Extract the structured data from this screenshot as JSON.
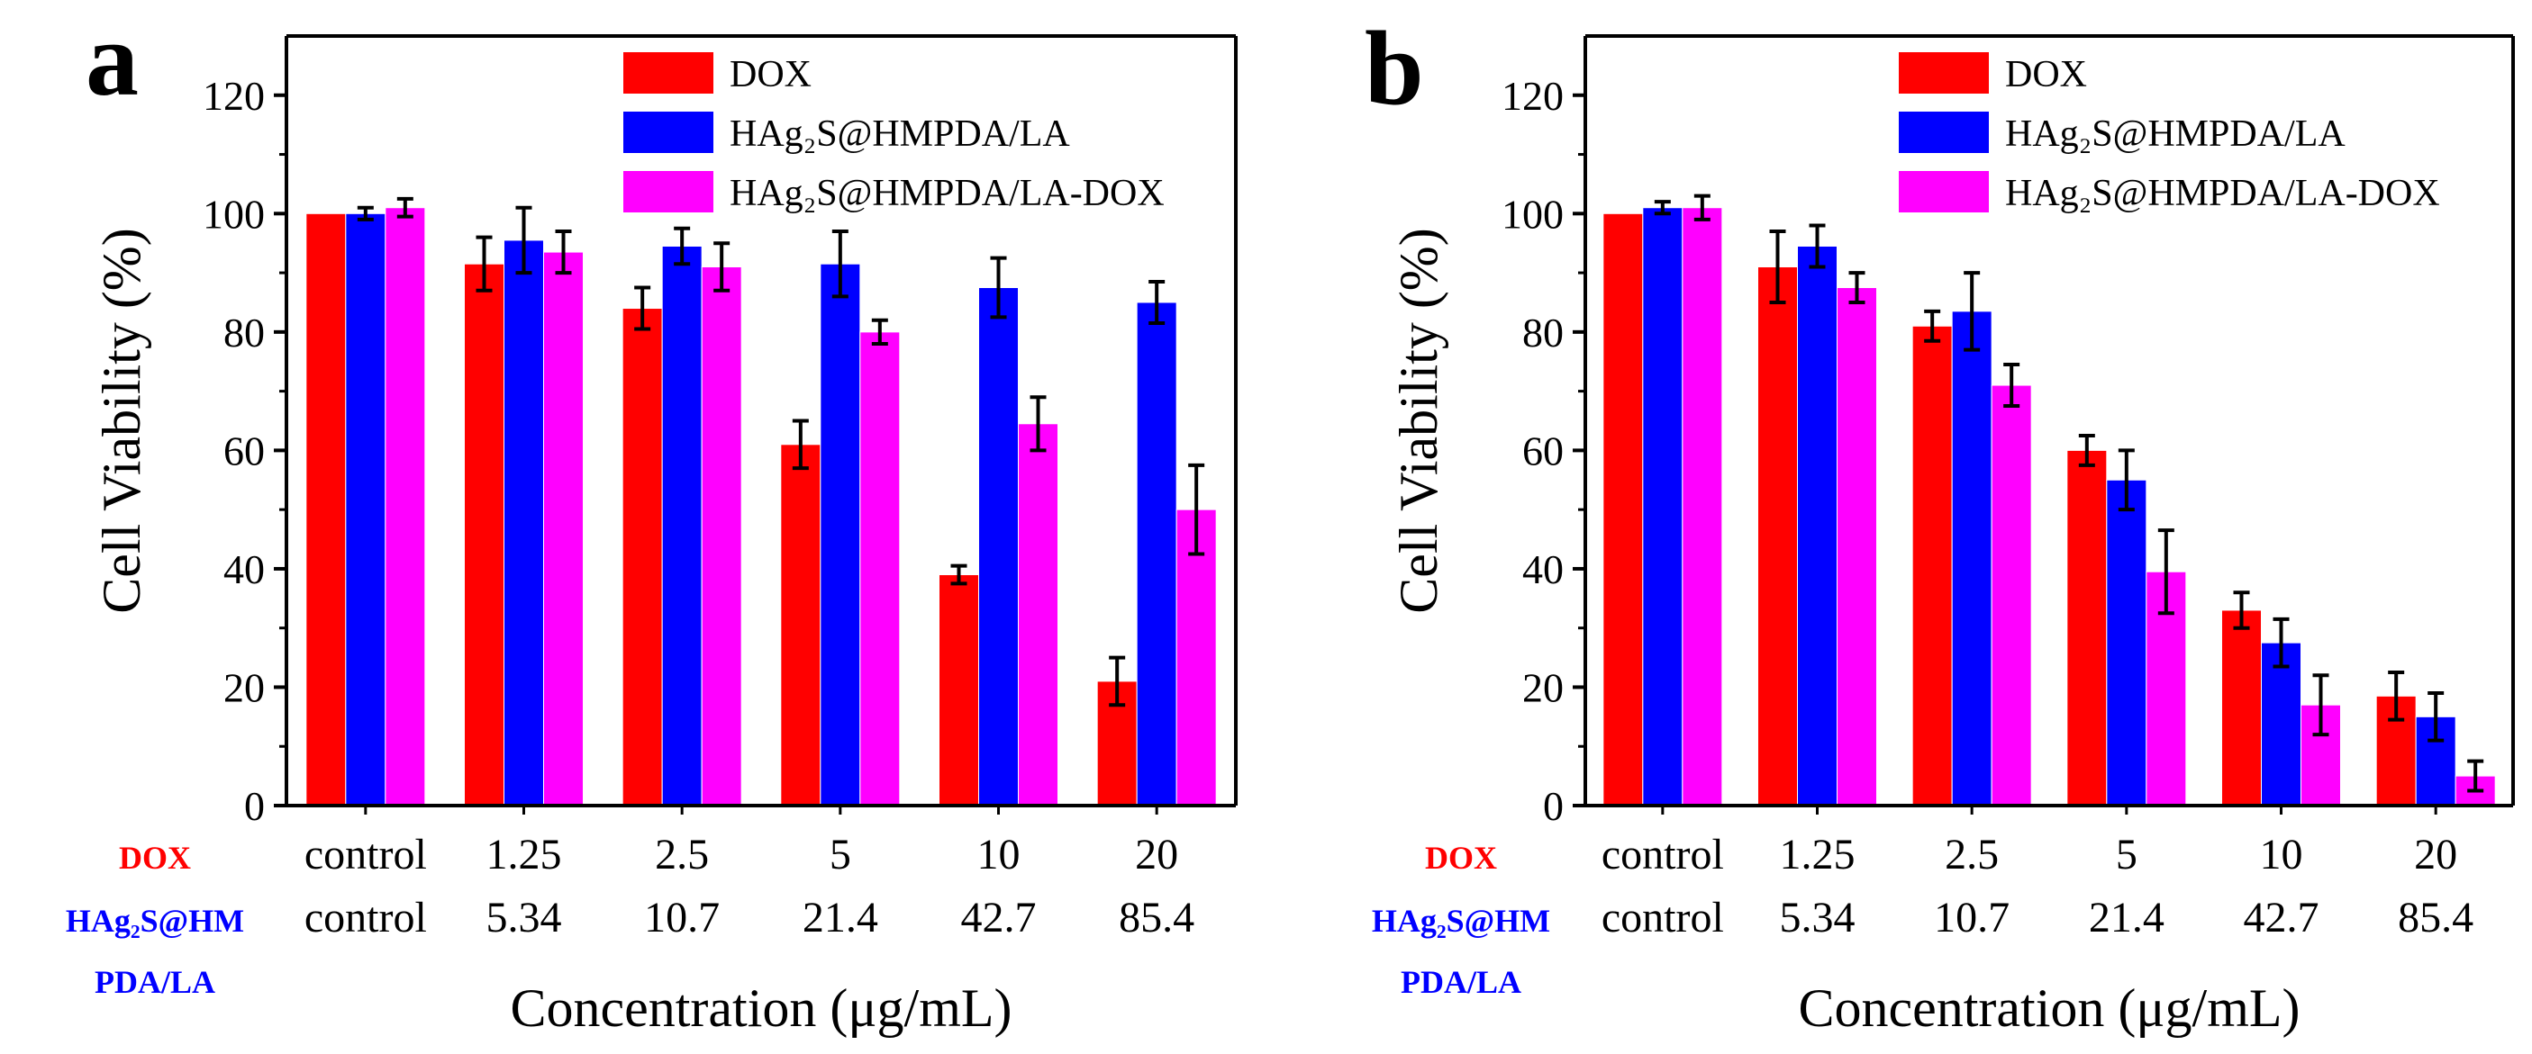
{
  "colors": {
    "dox": "#ff0000",
    "hags": "#0000ff",
    "hags_dox": "#ff00ff",
    "axis": "#000000",
    "row_dox_label": "#ff0000",
    "row_hags_label": "#0000ff"
  },
  "chart_data": [
    {
      "type": "bar",
      "panel_label": "a",
      "ylabel": "Cell Viability (%)",
      "xlabel": "Concentration (μg/mL)",
      "ylim": [
        0,
        130
      ],
      "yticks": [
        "0",
        "20",
        "40",
        "60",
        "80",
        "100",
        "120"
      ],
      "ytick_values": [
        0,
        20,
        40,
        60,
        80,
        100,
        120
      ],
      "categories_dox": [
        "control",
        "1.25",
        "2.5",
        "5",
        "10",
        "20"
      ],
      "categories_hags": [
        "control",
        "5.34",
        "10.7",
        "21.4",
        "42.7",
        "85.4"
      ],
      "row_label_dox": "DOX",
      "row_label_hags_1": "HAg₂S@HM",
      "row_label_hags_2": "PDA/LA",
      "legend_position": "top-right",
      "series": [
        {
          "name": "DOX",
          "color_key": "dox",
          "values": [
            100,
            91.5,
            84,
            61,
            39,
            21
          ],
          "errors": [
            0,
            4.5,
            3.5,
            4,
            1.5,
            4
          ]
        },
        {
          "name": "HAg₂S@HMPDA/LA",
          "color_key": "hags",
          "values": [
            100,
            95.5,
            94.5,
            91.5,
            87.5,
            85
          ],
          "errors": [
            1,
            5.5,
            3,
            5.5,
            5,
            3.5
          ]
        },
        {
          "name": "HAg₂S@HMPDA/LA-DOX",
          "color_key": "hags_dox",
          "values": [
            101,
            93.5,
            91,
            80,
            64.5,
            50
          ],
          "errors": [
            1.5,
            3.5,
            4,
            2,
            4.5,
            7.5
          ]
        }
      ]
    },
    {
      "type": "bar",
      "panel_label": "b",
      "ylabel": "Cell Viability (%)",
      "xlabel": "Concentration (μg/mL)",
      "ylim": [
        0,
        130
      ],
      "yticks": [
        "0",
        "20",
        "40",
        "60",
        "80",
        "100",
        "120"
      ],
      "ytick_values": [
        0,
        20,
        40,
        60,
        80,
        100,
        120
      ],
      "categories_dox": [
        "control",
        "1.25",
        "2.5",
        "5",
        "10",
        "20"
      ],
      "categories_hags": [
        "control",
        "5.34",
        "10.7",
        "21.4",
        "42.7",
        "85.4"
      ],
      "row_label_dox": "DOX",
      "row_label_hags_1": "HAg₂S@HM",
      "row_label_hags_2": "PDA/LA",
      "legend_position": "top-right",
      "series": [
        {
          "name": "DOX",
          "color_key": "dox",
          "values": [
            100,
            91,
            81,
            60,
            33,
            18.5
          ],
          "errors": [
            0,
            6,
            2.5,
            2.5,
            3,
            4
          ]
        },
        {
          "name": "HAg₂S@HMPDA/LA",
          "color_key": "hags",
          "values": [
            101,
            94.5,
            83.5,
            55,
            27.5,
            15
          ],
          "errors": [
            1,
            3.5,
            6.5,
            5,
            4,
            4
          ]
        },
        {
          "name": "HAg₂S@HMPDA/LA-DOX",
          "color_key": "hags_dox",
          "values": [
            101,
            87.5,
            71,
            39.5,
            17,
            5
          ],
          "errors": [
            2,
            2.5,
            3.5,
            7,
            5,
            2.5
          ]
        }
      ]
    }
  ]
}
